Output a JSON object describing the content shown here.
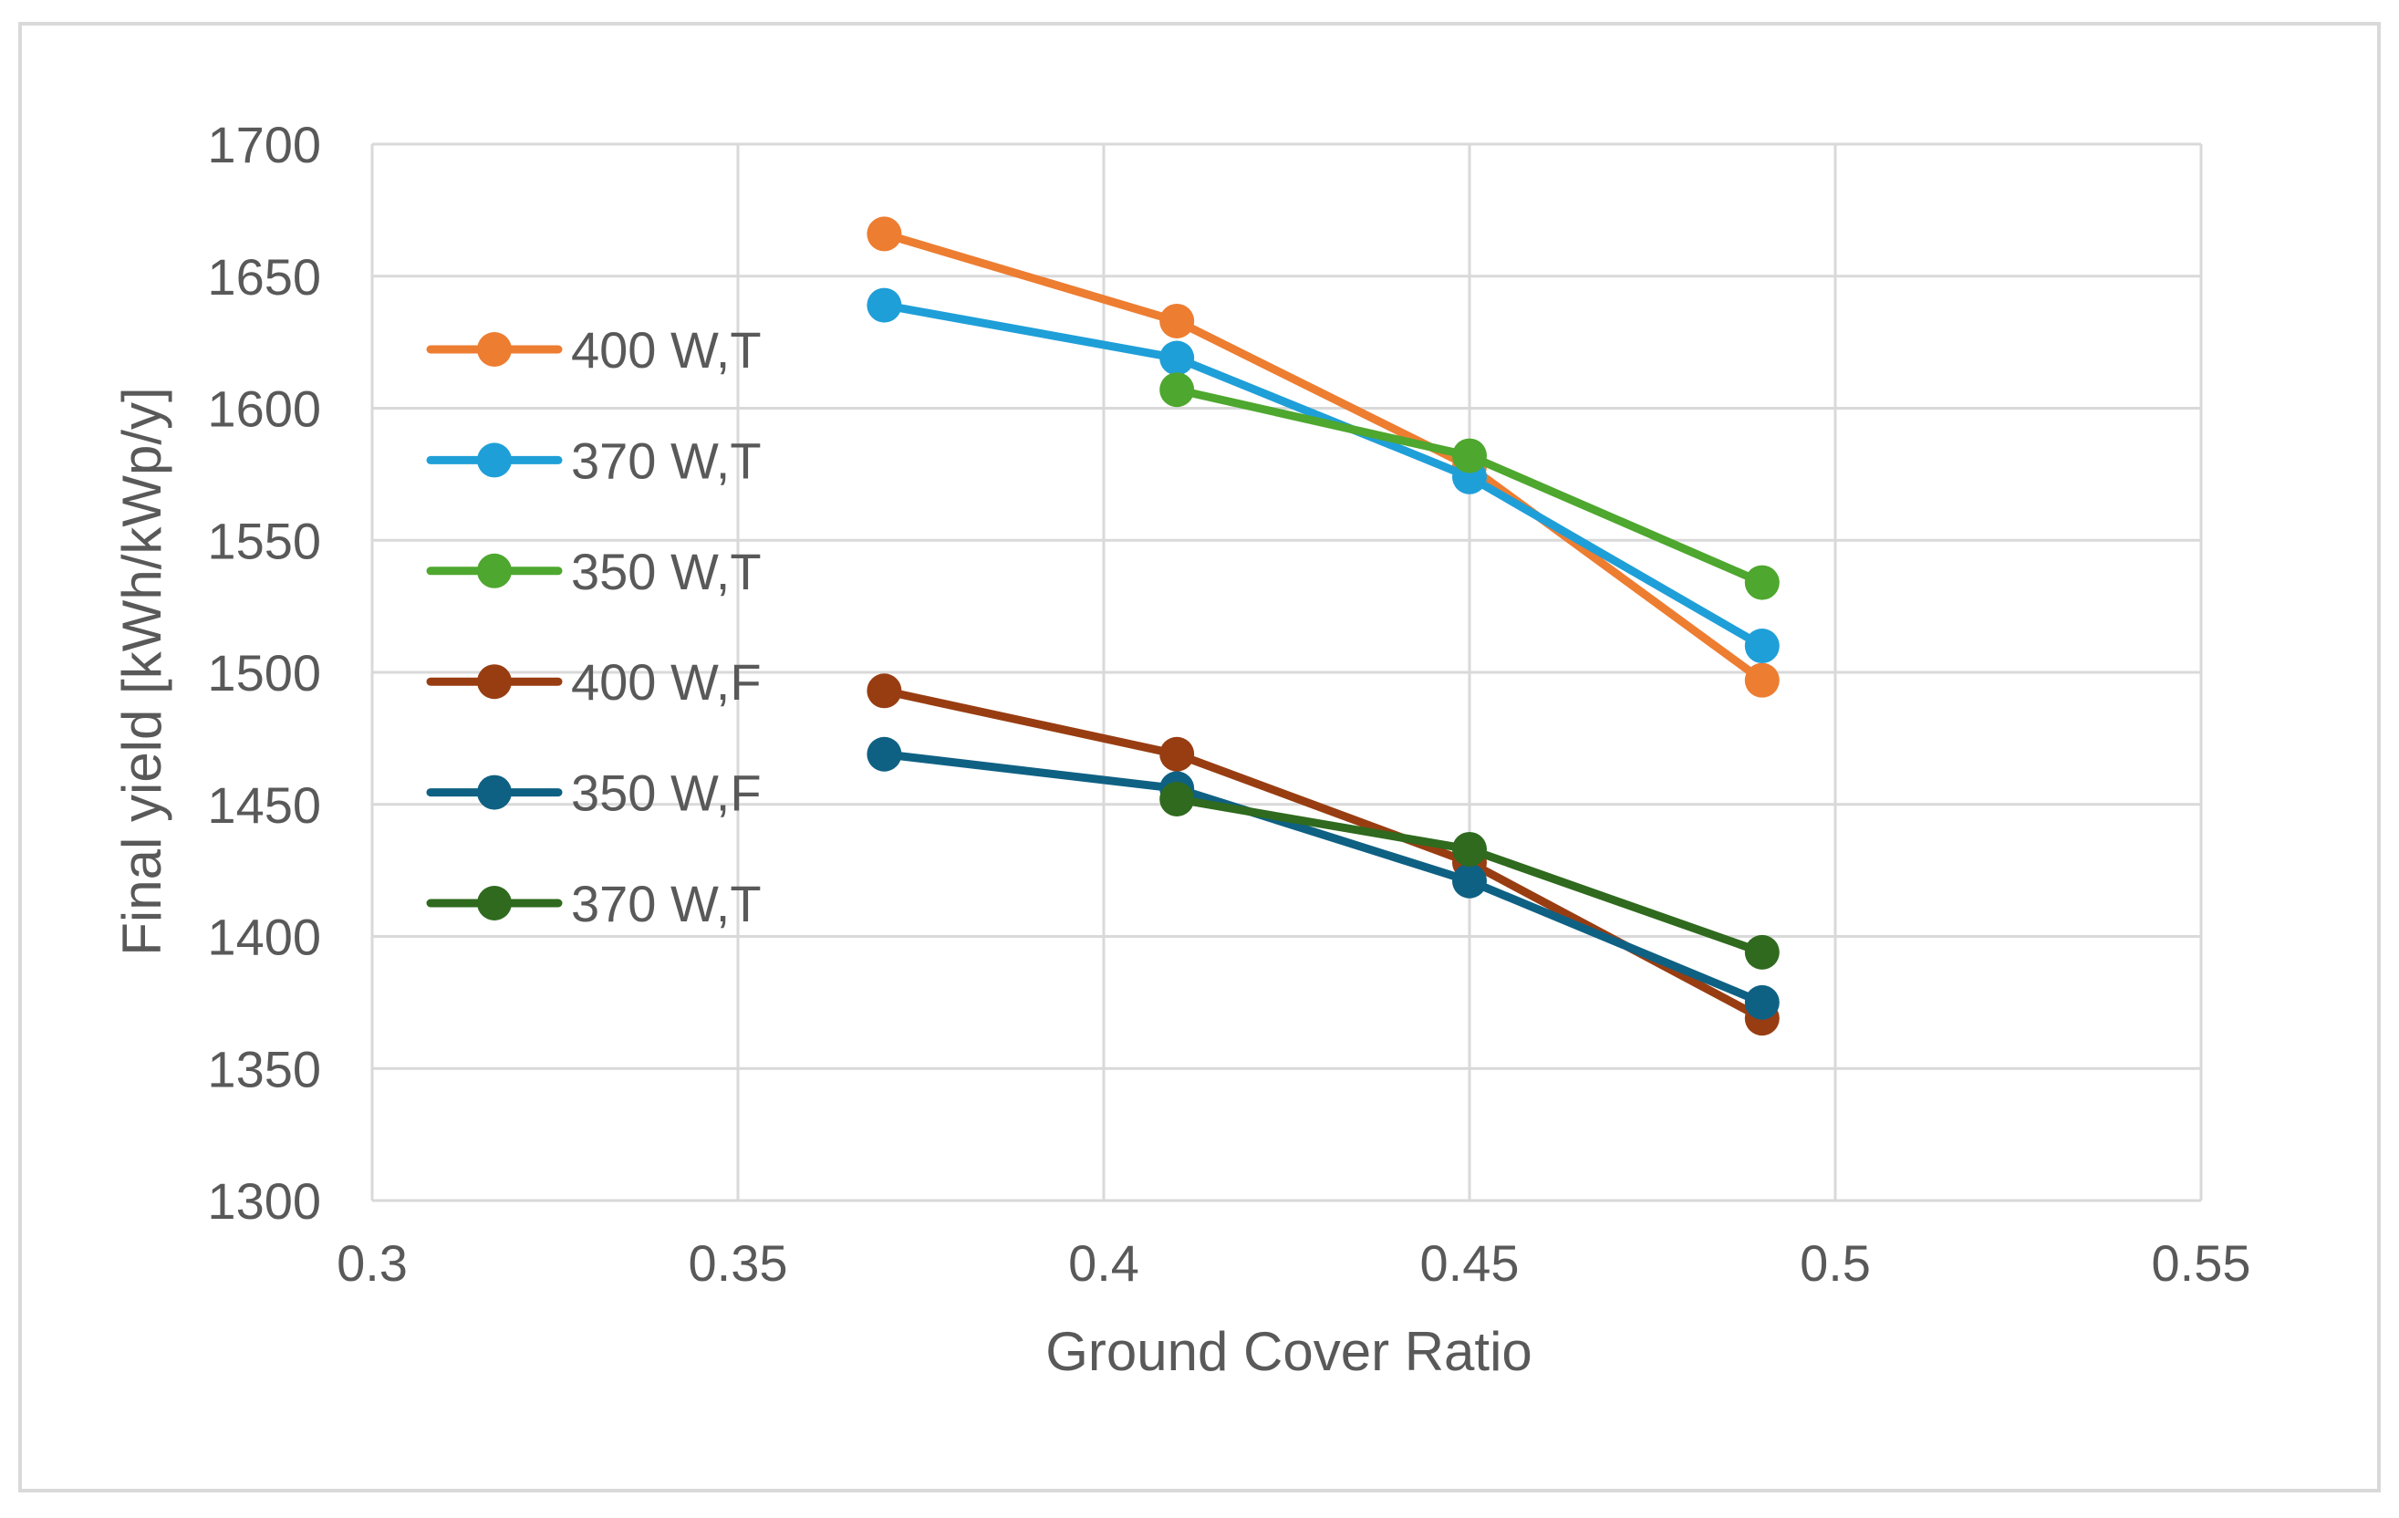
{
  "chart_data": {
    "type": "line",
    "title": "",
    "xlabel": "Ground Cover Ratio",
    "ylabel": "Final yield [kWh/kWp/y]",
    "xlim": [
      0.3,
      0.55
    ],
    "ylim": [
      1300,
      1700
    ],
    "xticks": [
      0.3,
      0.35,
      0.4,
      0.45,
      0.5,
      0.55
    ],
    "xtick_labels": [
      "0.3",
      "0.35",
      "0.4",
      "0.45",
      "0.5",
      "0.55"
    ],
    "yticks": [
      1300,
      1350,
      1400,
      1450,
      1500,
      1550,
      1600,
      1650,
      1700
    ],
    "ytick_labels": [
      "1300",
      "1350",
      "1400",
      "1450",
      "1500",
      "1550",
      "1600",
      "1650",
      "1700"
    ],
    "grid": true,
    "legend_position": "left",
    "series": [
      {
        "name": "400 W,T",
        "color": "#ed7d31",
        "x": [
          0.37,
          0.41,
          0.45,
          0.49
        ],
        "y": [
          1666,
          1633,
          1578,
          1497
        ]
      },
      {
        "name": "370 W,T",
        "color": "#1f9fd8",
        "x": [
          0.37,
          0.41,
          0.45,
          0.49
        ],
        "y": [
          1639,
          1619,
          1574,
          1510
        ]
      },
      {
        "name": "350 W,T",
        "color": "#4ea72e",
        "x": [
          0.41,
          0.45,
          0.49
        ],
        "y": [
          1607,
          1582,
          1534
        ]
      },
      {
        "name": "400 W,F",
        "color": "#983d12",
        "x": [
          0.37,
          0.41,
          0.45,
          0.49
        ],
        "y": [
          1493,
          1469,
          1428,
          1369
        ]
      },
      {
        "name": "350 W,F",
        "color": "#0f6183",
        "x": [
          0.37,
          0.41,
          0.45,
          0.49
        ],
        "y": [
          1469,
          1456,
          1421,
          1375
        ]
      },
      {
        "name": "370 W,T",
        "color": "#2f6a1e",
        "x": [
          0.41,
          0.45,
          0.49
        ],
        "y": [
          1452,
          1433,
          1394
        ]
      }
    ]
  }
}
